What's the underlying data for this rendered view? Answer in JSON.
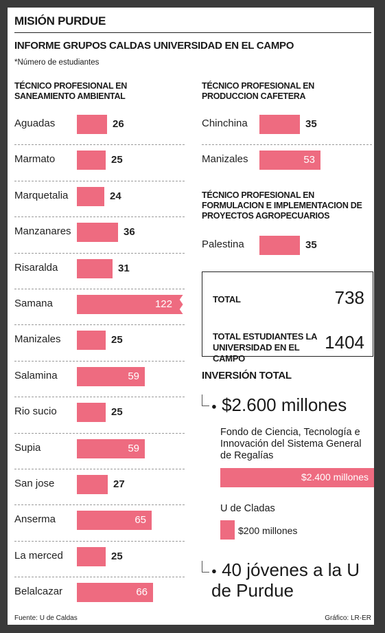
{
  "title": "MISIÓN PURDUE",
  "subtitle": "INFORME GRUPOS CALDAS UNIVERSIDAD EN EL CAMPO",
  "note": "*Número de estudiantes",
  "sections": {
    "left_title": "TÉCNICO PROFESIONAL EN SANEAMIENTO AMBIENTAL",
    "cafe_title": "TÉCNICO PROFESIONAL EN PRODUCCION CAFETERA",
    "agro_title": "TÉCNICO PROFESIONAL EN FORMULACION E IMPLEMENTACION DE  PROYECTOS AGROPECUARIOS"
  },
  "totals": {
    "total_label": "TOTAL",
    "total_value": "738",
    "students_label": "TOTAL ESTUDIANTES LA UNIVERSIDAD EN EL CAMPO",
    "students_value": "1404"
  },
  "investment": {
    "title": "INVERSIÓN TOTAL",
    "amount": "$2.600 millones",
    "fund_label": "Fondo de Ciencia, Tecnología e Innovación del Sistema General de Regalías",
    "fund_value": "$2.400 millones",
    "uc_label": "U de Cladas",
    "uc_value": "$200 millones",
    "students_text": "40 jóvenes a la U de Purdue"
  },
  "footer": {
    "source": "Fuente: U de Caldas",
    "credit": "Gráfico: LR-ER"
  },
  "chart_data": [
    {
      "type": "bar",
      "orientation": "horizontal",
      "title": "TÉCNICO PROFESIONAL EN SANEAMIENTO AMBIENTAL",
      "categories": [
        "Aguadas",
        "Marmato",
        "Marquetalia",
        "Manzanares",
        "Risaralda",
        "Samana",
        "Manizales",
        "Salamina",
        "Rio sucio",
        "Supia",
        "San jose",
        "Anserma",
        "La merced",
        "Belalcazar"
      ],
      "values": [
        26,
        25,
        24,
        36,
        31,
        122,
        25,
        59,
        25,
        59,
        27,
        65,
        25,
        66
      ],
      "value_labels_shown": true,
      "broken_axis_category": "Samana",
      "color": "#ee6b80"
    },
    {
      "type": "bar",
      "orientation": "horizontal",
      "title": "TÉCNICO PROFESIONAL EN PRODUCCION CAFETERA",
      "categories": [
        "Chinchina",
        "Manizales"
      ],
      "values": [
        35,
        53
      ],
      "value_labels_shown": true,
      "color": "#ee6b80"
    },
    {
      "type": "bar",
      "orientation": "horizontal",
      "title": "TÉCNICO PROFESIONAL EN FORMULACION E IMPLEMENTACION DE  PROYECTOS AGROPECUARIOS",
      "categories": [
        "Palestina"
      ],
      "values": [
        35
      ],
      "value_labels_shown": true,
      "color": "#ee6b80"
    },
    {
      "type": "bar",
      "orientation": "horizontal",
      "title": "INVERSIÓN TOTAL",
      "categories": [
        "Fondo de Ciencia, Tecnología e Innovación del Sistema General de Regalías",
        "U de Cladas"
      ],
      "values": [
        2400,
        200
      ],
      "unit": "millones",
      "color": "#ee6b80"
    }
  ]
}
